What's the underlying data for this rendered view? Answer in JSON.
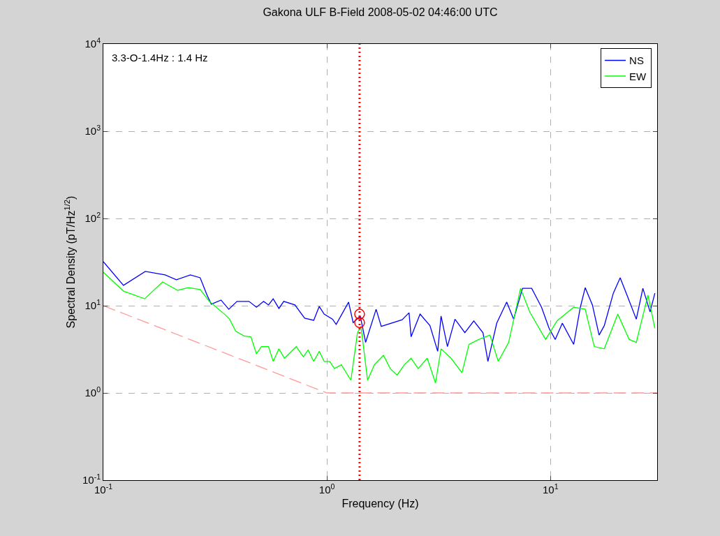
{
  "chart_data": {
    "type": "line",
    "title": "Gakona ULF B-Field 2008-05-02 04:46:00 UTC",
    "xlabel": "Frequency (Hz)",
    "ylabel": "Spectral Density (pT/Hz$^{1/2}$)",
    "log": "xy",
    "grid": true,
    "legend": "top right",
    "xlim": [
      0.1,
      30
    ],
    "ylim": [
      0.1,
      10000
    ],
    "xticks": [
      {
        "value": 0.1,
        "label": "10$^{-1}$"
      },
      {
        "value": 1,
        "label": "10$^{0}$"
      },
      {
        "value": 10,
        "label": "10$^{1}$"
      }
    ],
    "yticks": [
      {
        "value": 0.1,
        "label": "10$^{-1}$"
      },
      {
        "value": 1,
        "label": "10$^{0}$"
      },
      {
        "value": 10,
        "label": "10$^{1}$"
      },
      {
        "value": 100,
        "label": "10$^{2}$"
      },
      {
        "value": 1000,
        "label": "10$^{3}$"
      },
      {
        "value": 10000,
        "label": "10$^{4}$"
      }
    ],
    "annotations": [
      "3.3-O-1.4Hz : 1.4 Hz"
    ],
    "ref_lines": [
      {
        "axis": "x",
        "value": 1.4,
        "color": "#ff0000",
        "line_style": "dotted"
      }
    ],
    "series": [
      {
        "name": "NS",
        "color": "#0000ff",
        "line_style": "solid",
        "marker": "none",
        "x": [
          0.1,
          0.123,
          0.154,
          0.189,
          0.212,
          0.245,
          0.271,
          0.291,
          0.304,
          0.336,
          0.364,
          0.396,
          0.448,
          0.484,
          0.521,
          0.548,
          0.575,
          0.61,
          0.641,
          0.719,
          0.795,
          0.873,
          0.924,
          0.972,
          1.06,
          1.1,
          1.25,
          1.31,
          1.41,
          1.49,
          1.66,
          1.75,
          2.17,
          2.33,
          2.38,
          2.61,
          2.89,
          3.13,
          3.24,
          3.46,
          3.74,
          4.14,
          4.54,
          4.99,
          5.25,
          5.75,
          6.37,
          6.84,
          7.5,
          8.24,
          9.12,
          9.86,
          10.5,
          11.3,
          12.7,
          13.6,
          14.3,
          15.4,
          16.5,
          17.4,
          19.1,
          20.5,
          22.0,
          24.2,
          25.9,
          27.9,
          29.3
        ],
        "values": [
          31.9,
          17.1,
          24.7,
          22.5,
          19.8,
          22.5,
          20.9,
          13.2,
          10.4,
          11.6,
          9.1,
          11.2,
          11.2,
          9.6,
          11.2,
          10.2,
          12.0,
          9.3,
          11.2,
          10.2,
          7.2,
          6.8,
          9.8,
          8.0,
          7.0,
          6.1,
          11.0,
          6.4,
          7.6,
          3.8,
          9.1,
          5.8,
          6.9,
          8.3,
          4.4,
          8.0,
          5.9,
          3.0,
          7.6,
          3.4,
          7.0,
          4.9,
          6.7,
          4.9,
          2.3,
          6.3,
          11.0,
          7.0,
          15.8,
          15.8,
          9.6,
          5.5,
          4.1,
          6.3,
          3.6,
          9.6,
          16.1,
          10.2,
          4.6,
          5.9,
          13.9,
          20.9,
          13.2,
          7.0,
          15.8,
          8.5,
          13.9
        ]
      },
      {
        "name": "EW",
        "color": "#00ff00",
        "line_style": "solid",
        "marker": "none",
        "x": [
          0.1,
          0.123,
          0.153,
          0.184,
          0.215,
          0.24,
          0.271,
          0.298,
          0.348,
          0.367,
          0.391,
          0.426,
          0.457,
          0.484,
          0.509,
          0.548,
          0.575,
          0.61,
          0.646,
          0.729,
          0.784,
          0.824,
          0.873,
          0.924,
          0.972,
          1.03,
          1.08,
          1.16,
          1.28,
          1.37,
          1.42,
          1.52,
          1.63,
          1.79,
          1.92,
          2.06,
          2.22,
          2.38,
          2.56,
          2.81,
          3.06,
          3.24,
          3.59,
          4.02,
          4.32,
          4.78,
          5.36,
          5.84,
          6.5,
          7.35,
          8.07,
          9.51,
          10.7,
          12.7,
          14.3,
          15.7,
          17.4,
          20.0,
          22.5,
          24.2,
          27.3,
          29.3
        ],
        "values": [
          24.2,
          14.7,
          12.0,
          18.7,
          15.0,
          16.1,
          15.3,
          11.2,
          8.0,
          7.0,
          5.1,
          4.5,
          4.4,
          2.8,
          3.4,
          3.4,
          2.3,
          3.2,
          2.5,
          3.4,
          2.6,
          3.1,
          2.3,
          3.0,
          2.3,
          2.3,
          1.9,
          2.1,
          1.4,
          4.9,
          5.8,
          1.4,
          2.1,
          2.7,
          1.9,
          1.6,
          2.1,
          2.5,
          1.9,
          2.5,
          1.3,
          3.2,
          2.5,
          1.7,
          3.6,
          4.1,
          4.6,
          2.3,
          3.8,
          15.8,
          8.5,
          4.1,
          6.7,
          9.6,
          9.1,
          3.4,
          3.2,
          8.0,
          4.1,
          3.8,
          13.2,
          5.5
        ]
      },
      {
        "color": "#ff9999",
        "line_style": "dashed",
        "marker": "none",
        "x": [
          0.1,
          1,
          30
        ],
        "values": [
          10,
          1,
          1
        ]
      },
      {
        "type": "scatter",
        "color": "#ff0000",
        "marker": "circle",
        "x": [
          1.4,
          1.4
        ],
        "values": [
          8.0,
          6.4
        ]
      }
    ]
  }
}
